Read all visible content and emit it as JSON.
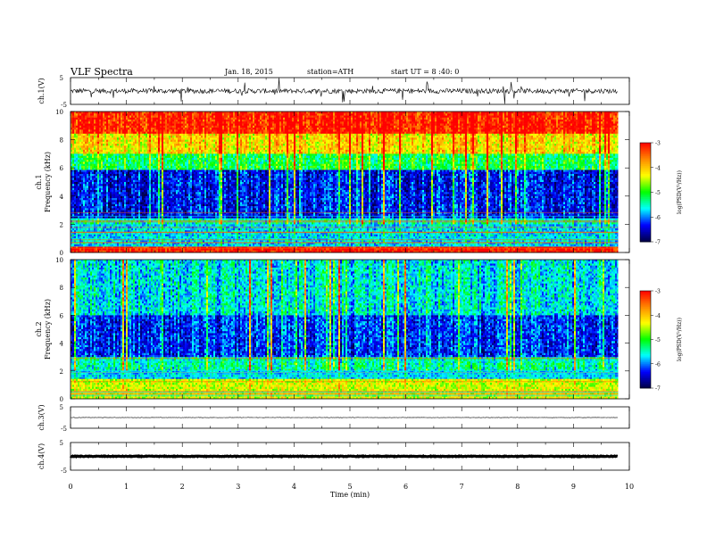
{
  "header": {
    "title": "VLF Spectra",
    "date": "Jan. 18, 2015",
    "station": "station=ATH",
    "start_ut": "start UT =  8 :40: 0"
  },
  "colorbar": {
    "label": "log(PSD(V²/Hz))",
    "ticks": [
      "-3",
      "-4",
      "-5",
      "-6",
      "-7"
    ],
    "colors": [
      "#ff0000",
      "#ff8800",
      "#ffff00",
      "#00ff00",
      "#00ffff",
      "#0000ff",
      "#000044"
    ]
  },
  "chart_data": [
    {
      "type": "line",
      "name": "ch1-waveform",
      "ylabel": "ch.1(V)",
      "xlim": [
        0,
        10
      ],
      "ylim": [
        -5,
        5
      ],
      "yticks": [
        "5",
        "-5"
      ],
      "baseline": 0,
      "note_values": "noisy waveform near 0 V with spikes up to about ±5 V, data ends near 9.8 min"
    },
    {
      "type": "heatmap",
      "name": "ch1-spectrogram",
      "ylabel": "Frequency (kHz)",
      "channel_label": "ch.1",
      "xlim": [
        0,
        10
      ],
      "ylim": [
        0,
        10
      ],
      "yticks": [
        "10",
        "8",
        "6",
        "4",
        "2",
        "0"
      ],
      "zlim": [
        -7,
        -3
      ],
      "zlabel": "log(PSD(V²/Hz))",
      "band_levels": [
        {
          "f": [
            0.0,
            0.5
          ],
          "level": -3.2
        },
        {
          "f": [
            0.5,
            2.5
          ],
          "level": -5.8
        },
        {
          "f": [
            2.5,
            5.8
          ],
          "level": -6.7
        },
        {
          "f": [
            5.8,
            7.0
          ],
          "level": -5.5
        },
        {
          "f": [
            7.0,
            8.5
          ],
          "level": -4.5
        },
        {
          "f": [
            8.5,
            10.0
          ],
          "level": -3.5
        }
      ]
    },
    {
      "type": "heatmap",
      "name": "ch2-spectrogram",
      "ylabel": "Frequency (kHz)",
      "channel_label": "ch.2",
      "xlim": [
        0,
        10
      ],
      "ylim": [
        0,
        10
      ],
      "yticks": [
        "10",
        "8",
        "6",
        "4",
        "2",
        "0"
      ],
      "zlim": [
        -7,
        -3
      ],
      "zlabel": "log(PSD(V²/Hz))",
      "band_levels": [
        {
          "f": [
            0.0,
            1.5
          ],
          "level": -4.5
        },
        {
          "f": [
            1.5,
            3.0
          ],
          "level": -5.8
        },
        {
          "f": [
            3.0,
            6.0
          ],
          "level": -6.6
        },
        {
          "f": [
            6.0,
            10.0
          ],
          "level": -6.0
        }
      ]
    },
    {
      "type": "line",
      "name": "ch3-waveform",
      "ylabel": "ch.3(V)",
      "xlim": [
        0,
        10
      ],
      "ylim": [
        -5,
        5
      ],
      "yticks": [
        "5",
        "-5"
      ],
      "baseline": 0,
      "note_values": "nearly flat trace at about 0 V"
    },
    {
      "type": "line",
      "name": "ch4-waveform",
      "ylabel": "ch.4(V)",
      "xlim": [
        0,
        10
      ],
      "ylim": [
        -5,
        5
      ],
      "yticks": [
        "5",
        "-5"
      ],
      "baseline": 0,
      "note_values": "thick flat trace at about 0 V"
    }
  ],
  "xaxis": {
    "label": "Time (min)",
    "ticks": [
      "0",
      "1",
      "2",
      "3",
      "4",
      "5",
      "6",
      "7",
      "8",
      "9",
      "10"
    ],
    "data_end": 9.8
  }
}
